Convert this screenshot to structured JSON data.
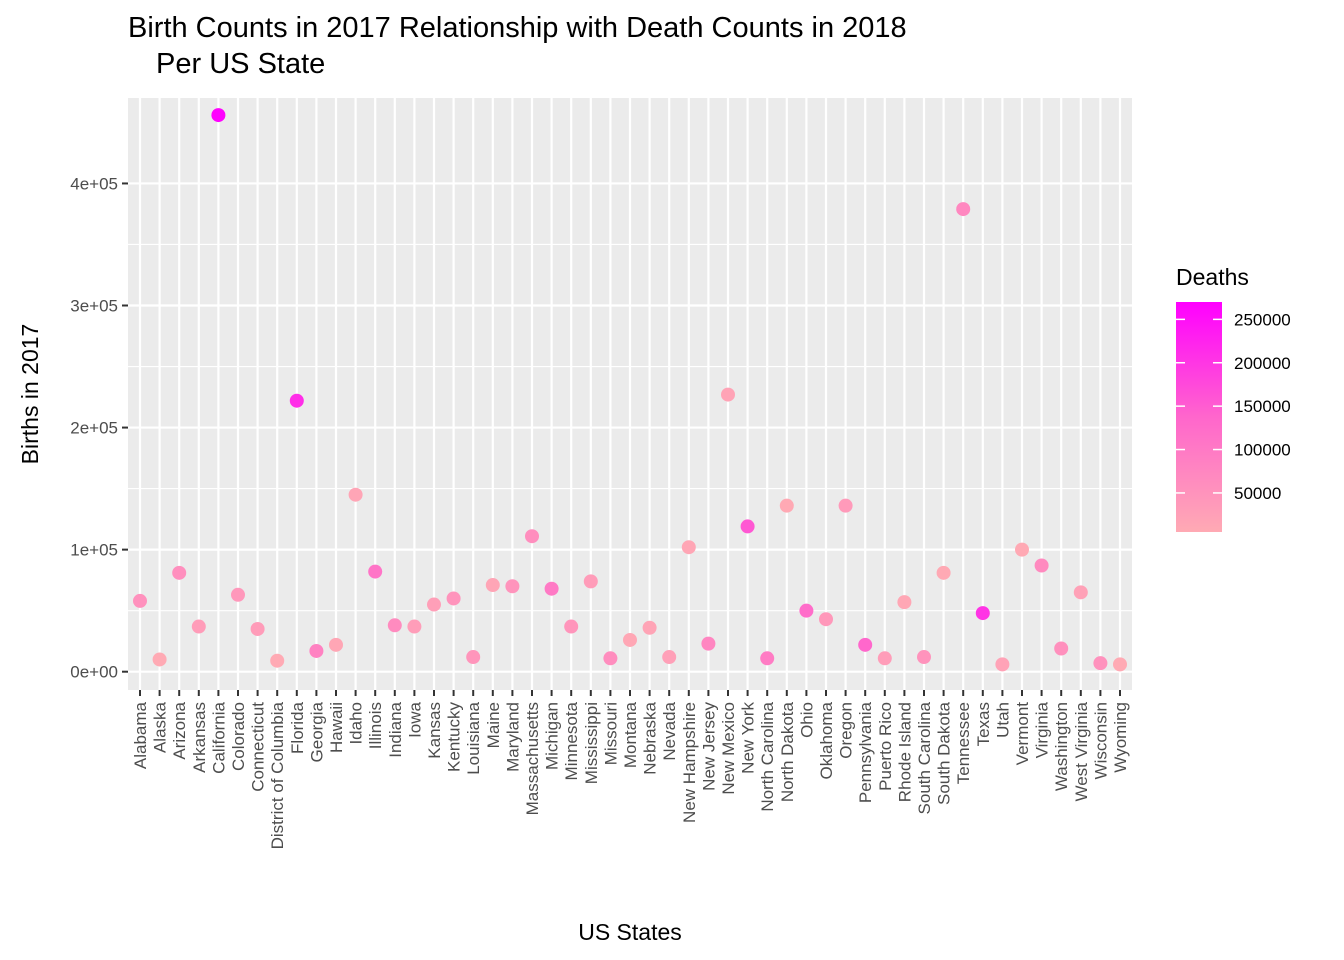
{
  "chart_data": {
    "type": "scatter",
    "title_line1": "Birth Counts in 2017 Relationship with Death Counts in 2018",
    "title_line2": " Per US State",
    "xlabel": "US States",
    "ylabel": "Births in 2017",
    "ylim": [
      -15000,
      470000
    ],
    "y_ticks": [
      0,
      100000,
      200000,
      300000,
      400000
    ],
    "y_tick_labels": [
      "0e+00",
      "1e+05",
      "2e+05",
      "3e+05",
      "4e+05"
    ],
    "grid": true,
    "legend": {
      "title": "Deaths",
      "placement": "right",
      "range": [
        5000,
        270000
      ],
      "ticks": [
        50000,
        100000,
        150000,
        200000,
        250000
      ],
      "tick_labels": [
        "50000",
        "100000",
        "150000",
        "200000",
        "250000"
      ],
      "color_low": "#ffaab4",
      "color_high": "#ff00ff"
    },
    "categories": [
      "Alabama",
      "Alaska",
      "Arizona",
      "Arkansas",
      "California",
      "Colorado",
      "Connecticut",
      "District of Columbia",
      "Florida",
      "Georgia",
      "Hawaii",
      "Idaho",
      "Illinois",
      "Indiana",
      "Iowa",
      "Kansas",
      "Kentucky",
      "Louisiana",
      "Maine",
      "Maryland",
      "Massachusetts",
      "Michigan",
      "Minnesota",
      "Mississippi",
      "Missouri",
      "Montana",
      "Nebraska",
      "Nevada",
      "New Hampshire",
      "New Jersey",
      "New Mexico",
      "New York",
      "North Carolina",
      "North Dakota",
      "Ohio",
      "Oklahoma",
      "Oregon",
      "Pennsylvania",
      "Puerto Rico",
      "Rhode Island",
      "South Carolina",
      "South Dakota",
      "Tennessee",
      "Texas",
      "Utah",
      "Vermont",
      "Virginia",
      "Washington",
      "West Virginia",
      "Wisconsin",
      "Wyoming"
    ],
    "births": [
      58000,
      10000,
      81000,
      37000,
      456000,
      63000,
      35000,
      9000,
      222000,
      17000,
      22000,
      145000,
      82000,
      38000,
      37000,
      55000,
      60000,
      12000,
      71000,
      70000,
      111000,
      68000,
      37000,
      74000,
      11000,
      26000,
      36000,
      12000,
      102000,
      23000,
      227000,
      119000,
      11000,
      136000,
      50000,
      43000,
      136000,
      22000,
      11000,
      57000,
      12000,
      81000,
      379000,
      48000,
      6000,
      100000,
      87000,
      19000,
      65000,
      7000,
      6000
    ],
    "deaths": [
      53000,
      5000,
      58000,
      33000,
      268000,
      41000,
      32000,
      5000,
      210000,
      82000,
      12000,
      14000,
      111000,
      66000,
      31000,
      27000,
      48000,
      45000,
      14000,
      48000,
      60000,
      98000,
      45000,
      32000,
      62000,
      10000,
      17000,
      25000,
      12000,
      75000,
      18000,
      156000,
      94000,
      7000,
      124000,
      40000,
      37000,
      135000,
      30000,
      10000,
      50000,
      7000,
      71000,
      203000,
      19000,
      6000,
      68000,
      56000,
      23000,
      52000,
      5000
    ]
  }
}
